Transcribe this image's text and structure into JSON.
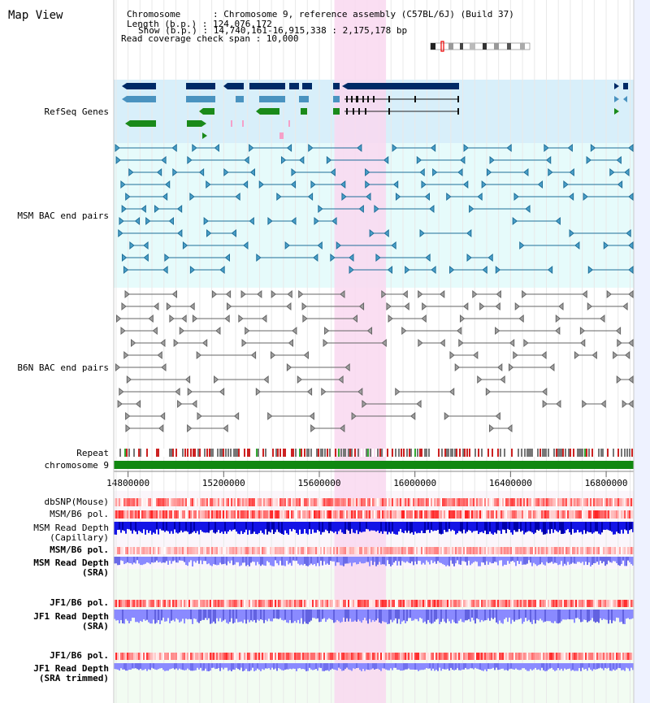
{
  "window": {
    "title": "Map View"
  },
  "info": {
    "chromosome": "Chromosome      : Chromosome 9, reference assembly (C57BL/6J) (Build 37)",
    "length": "Length (b.p.) : 124,076,172",
    "show": "Show (b.p.) : 14,740,161-16,915,338 : 2,175,178 bp",
    "coverage": "Read coverage check span : 10,000"
  },
  "tracks": [
    {
      "id": "refseq",
      "label": "RefSeq Genes",
      "color": "#000099"
    },
    {
      "id": "msm_bac",
      "label": "MSM BAC end pairs",
      "color": "#1a5e8a"
    },
    {
      "id": "b6n_bac",
      "label": "B6N BAC end pairs",
      "color": "#555555"
    },
    {
      "id": "repeat",
      "label": "Repeat",
      "color": "#000000"
    },
    {
      "id": "chrom",
      "label": "chromosome 9",
      "color": "#000000"
    },
    {
      "id": "dbsnp",
      "label": "dbSNP(Mouse)",
      "color": "#333333"
    },
    {
      "id": "msm_b6_pol",
      "label": "MSM/B6 pol.",
      "color": "#333333"
    },
    {
      "id": "msm_depth_cap",
      "label": "MSM Read Depth",
      "label2": "(Capillary)",
      "color": "#333333"
    },
    {
      "id": "msm_b6_pol2",
      "label": "MSM/B6 pol.",
      "color": "#e08a00"
    },
    {
      "id": "msm_depth_sra",
      "label": "MSM Read Depth",
      "label2": "(SRA)",
      "color": "#0000cc"
    },
    {
      "id": "jf1_pol",
      "label": "JF1/B6 pol.",
      "color": "#e08a00"
    },
    {
      "id": "jf1_depth_sra",
      "label": "JF1 Read Depth",
      "label2": "(SRA)",
      "color": "#0000cc"
    },
    {
      "id": "jf1_pol2",
      "label": "JF1/B6 pol.",
      "color": "#e08a00"
    },
    {
      "id": "jf1_depth_trim",
      "label": "JF1 Read Depth",
      "label2": "(SRA trimmed)",
      "color": "#0000cc"
    }
  ],
  "axis": {
    "ticks": [
      {
        "label": "14800000",
        "value": 14800000
      },
      {
        "label": "15200000",
        "value": 15200000
      },
      {
        "label": "15600000",
        "value": 15600000
      },
      {
        "label": "16000000",
        "value": 16000000
      },
      {
        "label": "16400000",
        "value": 16400000
      },
      {
        "label": "16800000",
        "value": 16800000
      }
    ],
    "start": 14740161,
    "end": 16915338
  },
  "highlight": {
    "start": 15663000,
    "end": 15879000,
    "color": "#f9d8f0"
  },
  "colors": {
    "refseq_bg": "#d8effa",
    "msm_bg": "#e6fbfb",
    "track_bg": "#f2fcf2",
    "gene_dark": "#002a66",
    "gene_mid": "#4a93c0",
    "gene_green": "#1a8a1a",
    "bac_msm": "#1f6f99",
    "bac_b6n": "#666666",
    "chrom": "#118811",
    "depth_cap": "#1414e6",
    "depth_sra": "#8a8aff"
  }
}
